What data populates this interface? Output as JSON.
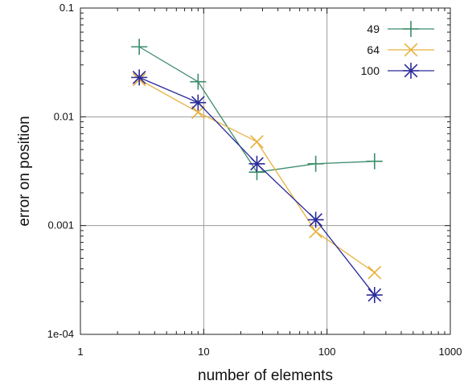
{
  "chart_data": {
    "type": "line",
    "xlabel": "number of elements",
    "ylabel": "error on position",
    "x_scale": "log",
    "y_scale": "log",
    "xlim": [
      1,
      1000
    ],
    "ylim": [
      0.0001,
      0.1
    ],
    "x_ticks": [
      {
        "value": 1,
        "label": "1"
      },
      {
        "value": 10,
        "label": "10"
      },
      {
        "value": 100,
        "label": "100"
      },
      {
        "value": 1000,
        "label": "1000"
      }
    ],
    "y_ticks": [
      {
        "value": 0.0001,
        "label": "1e-04"
      },
      {
        "value": 0.001,
        "label": "0.001"
      },
      {
        "value": 0.01,
        "label": "0.01"
      },
      {
        "value": 0.1,
        "label": "0.1"
      }
    ],
    "grid": true,
    "legend_position": "top-right",
    "series": [
      {
        "name": "49",
        "color": "#3a8c6a",
        "marker": "plus",
        "x": [
          3,
          9,
          27,
          81,
          243
        ],
        "y": [
          0.044,
          0.021,
          0.0031,
          0.0037,
          0.0039
        ]
      },
      {
        "name": "64",
        "color": "#e8b13c",
        "marker": "cross",
        "x": [
          3,
          9,
          27,
          81,
          243
        ],
        "y": [
          0.022,
          0.011,
          0.0059,
          0.00088,
          0.00037
        ]
      },
      {
        "name": "100",
        "color": "#2a2a9a",
        "marker": "asterisk",
        "x": [
          3,
          9,
          27,
          81,
          243
        ],
        "y": [
          0.023,
          0.0135,
          0.0037,
          0.00113,
          0.00023
        ]
      }
    ]
  }
}
